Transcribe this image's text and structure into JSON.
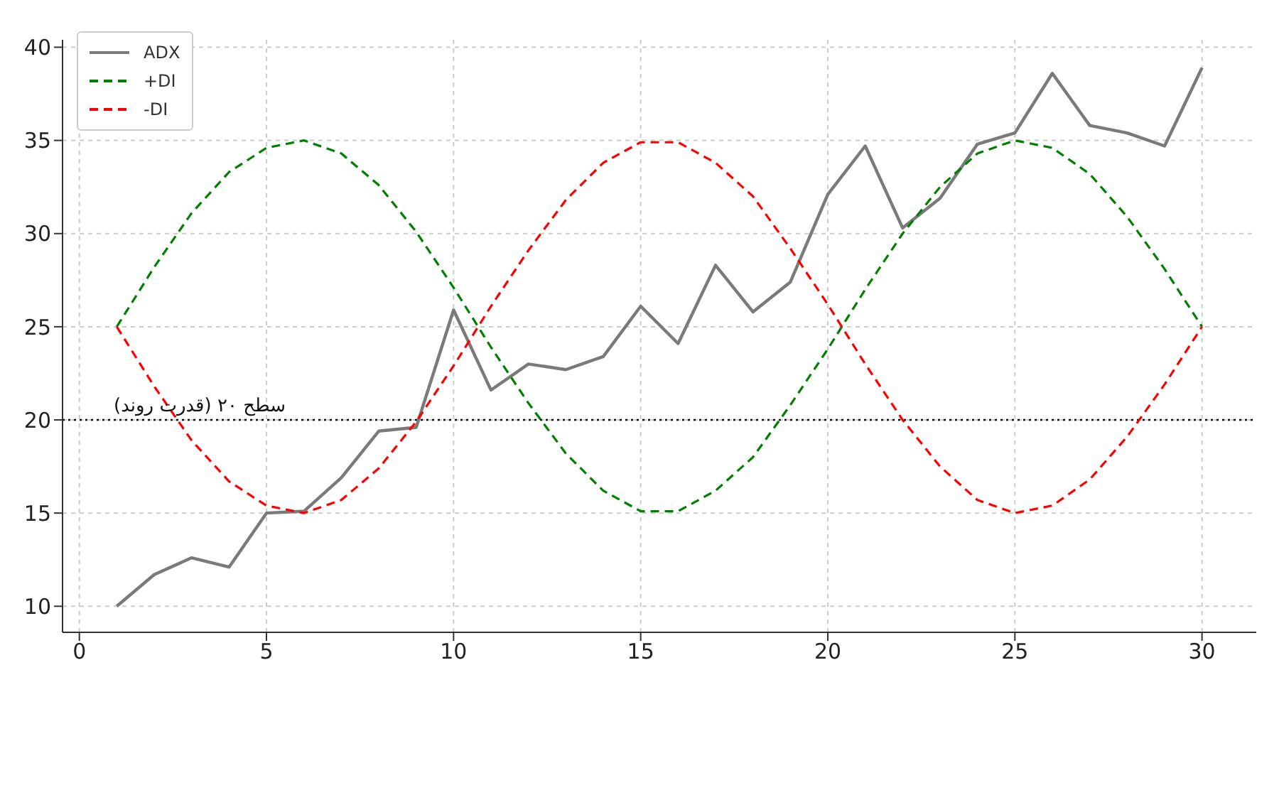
{
  "chart_data": {
    "type": "line",
    "x": [
      1,
      2,
      3,
      4,
      5,
      6,
      7,
      8,
      9,
      10,
      11,
      12,
      13,
      14,
      15,
      16,
      17,
      18,
      19,
      20,
      21,
      22,
      23,
      24,
      25,
      26,
      27,
      28,
      29,
      30
    ],
    "series": [
      {
        "name": "ADX",
        "color": "#7a7a7a",
        "line_style": "solid",
        "values": [
          10,
          11.7,
          12.6,
          12.1,
          15.0,
          15.1,
          16.9,
          19.4,
          19.6,
          25.9,
          21.6,
          23.0,
          22.7,
          23.4,
          26.1,
          24.1,
          28.3,
          25.8,
          27.4,
          32.1,
          34.7,
          30.3,
          31.9,
          34.8,
          35.4,
          38.6,
          35.8,
          35.4,
          34.7,
          38.9
        ]
      },
      {
        "name": "+DI",
        "color": "#008000",
        "line_style": "dashed",
        "values": [
          25,
          28.2,
          31.1,
          33.3,
          34.6,
          35,
          34.3,
          32.6,
          30.1,
          27.1,
          23.9,
          20.9,
          18.2,
          16.2,
          15.1,
          15.1,
          16.2,
          18.0,
          20.8,
          23.8,
          27.0,
          30.0,
          32.5,
          34.3,
          35,
          34.6,
          33.2,
          30.9,
          28.1,
          25
        ]
      },
      {
        "name": "-DI",
        "color": "#ff0000",
        "line_style": "dashed",
        "values": [
          25,
          21.8,
          18.9,
          16.7,
          15.4,
          15,
          15.7,
          17.4,
          19.9,
          22.9,
          26.1,
          29.1,
          31.8,
          33.8,
          34.9,
          34.9,
          33.8,
          32.0,
          29.2,
          26.2,
          23.0,
          20.0,
          17.5,
          15.7,
          15,
          15.4,
          16.8,
          19.1,
          21.9,
          25
        ]
      }
    ],
    "xlim": [
      -0.45,
      31.45
    ],
    "xticks": [
      0,
      5,
      10,
      15,
      20,
      25,
      30
    ],
    "ylim": [
      8.6,
      40.4
    ],
    "yticks": [
      10,
      15,
      20,
      25,
      30,
      35,
      40
    ],
    "ref_lines": [
      {
        "axis": "y",
        "value": 20,
        "label": "سطح ۲۰ (قدرت روند)",
        "color": "#000000",
        "line_style": "dotted"
      }
    ],
    "grid": true,
    "legend": "top left",
    "marker": "none"
  }
}
